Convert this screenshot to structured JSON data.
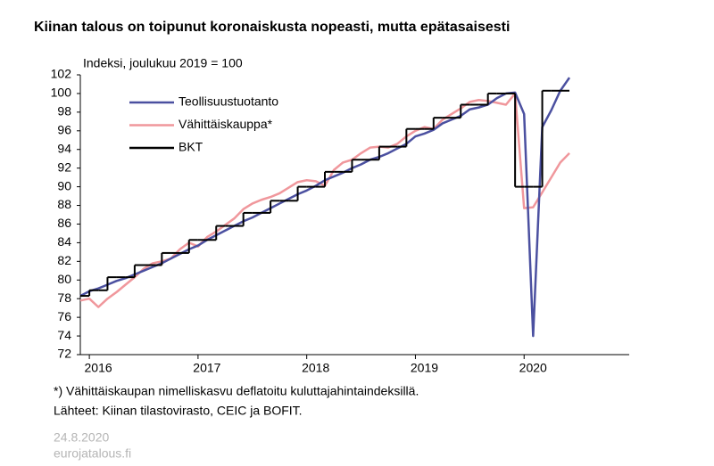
{
  "chart_data": {
    "type": "line",
    "title": "Kiinan talous on toipunut koronaiskusta nopeasti, mutta epätasaisesti",
    "subtitle": "Indeksi, joulukuu 2019 = 100",
    "x": [
      2015.917,
      2016.0,
      2016.083,
      2016.167,
      2016.25,
      2016.333,
      2016.417,
      2016.5,
      2016.583,
      2016.667,
      2016.75,
      2016.833,
      2016.917,
      2017.0,
      2017.083,
      2017.167,
      2017.25,
      2017.333,
      2017.417,
      2017.5,
      2017.583,
      2017.667,
      2017.75,
      2017.833,
      2017.917,
      2018.0,
      2018.083,
      2018.167,
      2018.25,
      2018.333,
      2018.417,
      2018.5,
      2018.583,
      2018.667,
      2018.75,
      2018.833,
      2018.917,
      2019.0,
      2019.083,
      2019.167,
      2019.25,
      2019.333,
      2019.417,
      2019.5,
      2019.583,
      2019.667,
      2019.75,
      2019.833,
      2019.917,
      2020.0,
      2020.083,
      2020.167,
      2020.25,
      2020.333,
      2020.417
    ],
    "series": [
      {
        "name": "Teollisuustuotanto",
        "color": "#4b50a0",
        "values": [
          78.3,
          78.8,
          79.1,
          79.5,
          79.9,
          80.2,
          80.6,
          81.0,
          81.4,
          81.8,
          82.3,
          82.8,
          83.3,
          83.7,
          84.3,
          84.8,
          85.3,
          85.8,
          86.3,
          86.7,
          87.2,
          87.7,
          88.2,
          88.7,
          89.2,
          89.6,
          90.1,
          90.7,
          91.1,
          91.5,
          92.0,
          92.4,
          92.9,
          93.2,
          93.6,
          94.1,
          94.6,
          95.4,
          95.7,
          96.1,
          96.8,
          97.2,
          97.6,
          98.3,
          98.5,
          98.8,
          99.5,
          100.0,
          100.1,
          97.8,
          74.0,
          96.4,
          98.2,
          100.3,
          101.7
        ]
      },
      {
        "name": "Vähittäiskauppa*",
        "color": "#f0979c",
        "values": [
          77.8,
          78.0,
          77.1,
          78.0,
          78.7,
          79.5,
          80.3,
          81.2,
          81.8,
          82.0,
          82.3,
          83.3,
          84.0,
          83.6,
          84.6,
          85.2,
          85.9,
          86.6,
          87.6,
          88.2,
          88.6,
          88.9,
          89.3,
          89.9,
          90.5,
          90.7,
          90.6,
          90.1,
          91.8,
          92.6,
          92.9,
          93.6,
          94.2,
          94.3,
          94.2,
          94.6,
          95.4,
          96.0,
          96.4,
          96.2,
          97.2,
          97.8,
          98.4,
          99.1,
          99.3,
          99.2,
          99.0,
          98.8,
          100.0,
          87.7,
          87.8,
          89.4,
          91.0,
          92.6,
          93.6
        ]
      },
      {
        "name": "BKT",
        "color": "#000000",
        "step": true,
        "values": [
          78.3,
          78.9,
          78.9,
          80.3,
          80.3,
          80.3,
          81.6,
          81.6,
          81.6,
          82.9,
          82.9,
          82.9,
          84.3,
          84.3,
          84.3,
          85.8,
          85.8,
          85.8,
          87.2,
          87.2,
          87.2,
          88.5,
          88.5,
          88.5,
          90.0,
          90.0,
          90.0,
          91.6,
          91.6,
          91.6,
          92.9,
          92.9,
          92.9,
          94.3,
          94.3,
          94.3,
          96.2,
          96.2,
          96.2,
          97.4,
          97.4,
          97.4,
          98.8,
          98.8,
          98.8,
          100.0,
          100.0,
          100.0,
          90.0,
          90.0,
          90.0,
          100.3,
          100.3,
          100.3,
          100.3
        ]
      }
    ],
    "xlim": [
      2015.917,
      2020.967
    ],
    "xticks": [
      2016,
      2017,
      2018,
      2019,
      2020
    ],
    "ylim": [
      72,
      102
    ],
    "yticks": [
      72,
      74,
      76,
      78,
      80,
      82,
      84,
      86,
      88,
      90,
      92,
      94,
      96,
      98,
      100,
      102
    ],
    "grid": false,
    "legend": "upper left"
  },
  "footer": {
    "note": "*) Vähittäiskaupan nimelliskasvu deflatoitu kuluttajahintaindeksillä.",
    "source": "Lähteet: Kiinan tilastovirasto, CEIC ja BOFIT.",
    "date": "24.8.2020",
    "site": "eurojatalous.fi"
  }
}
